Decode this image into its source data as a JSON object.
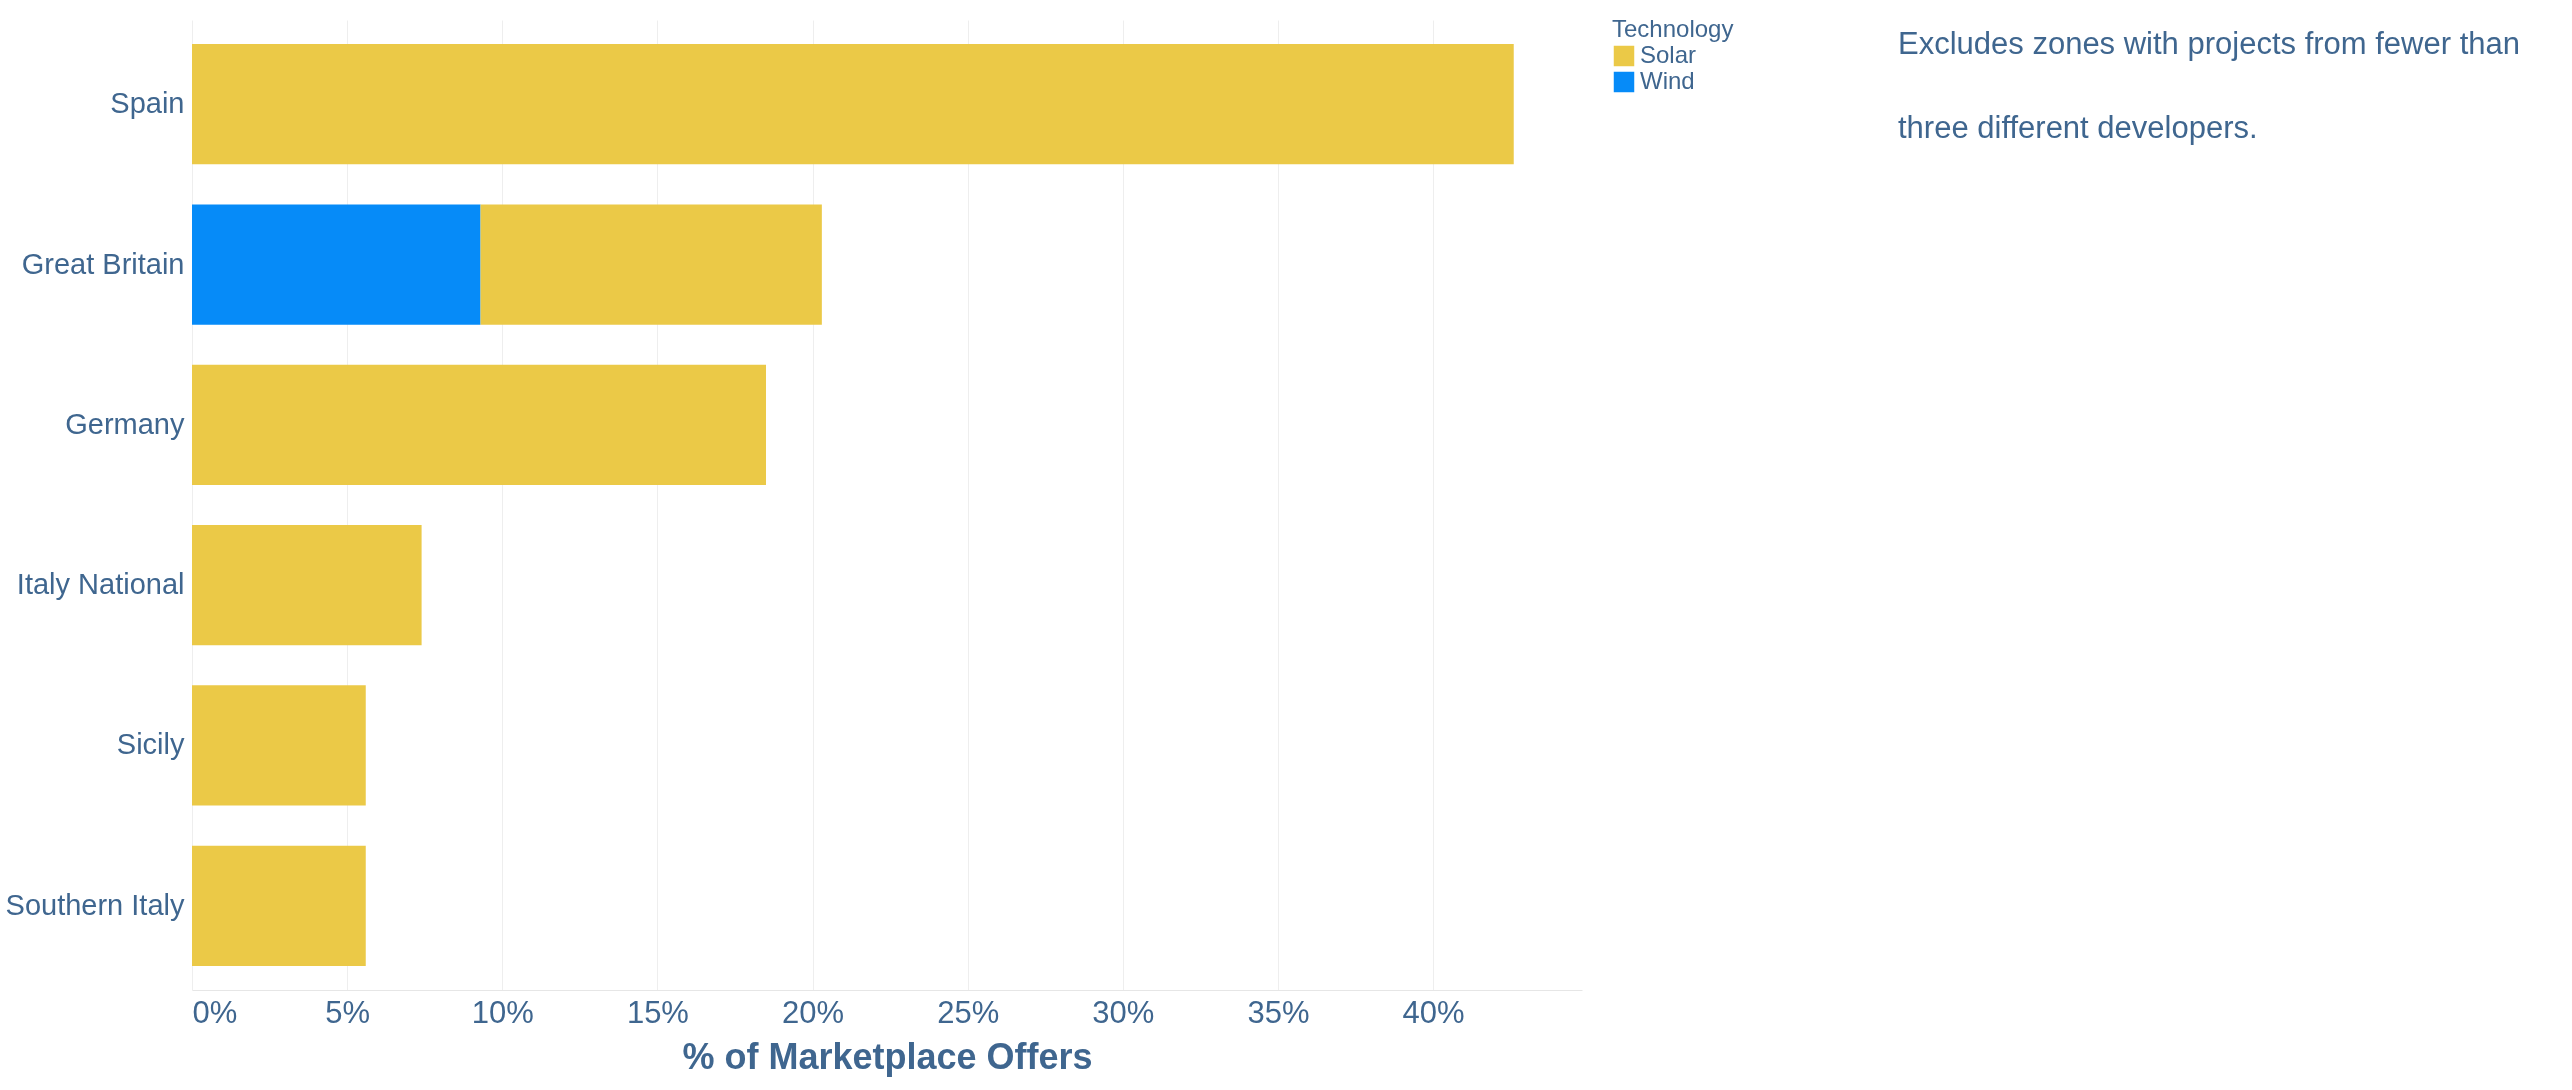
{
  "chart_data": {
    "type": "bar",
    "orientation": "horizontal",
    "stacked": true,
    "categories": [
      "Spain",
      "Great Britain",
      "Germany",
      "Italy National",
      "Sicily",
      "Southern Italy"
    ],
    "series": [
      {
        "name": "Wind",
        "color": "#068bf8",
        "values": [
          null,
          9.3,
          null,
          null,
          null,
          null
        ]
      },
      {
        "name": "Solar",
        "color": "#ebc947",
        "values": [
          42.6,
          11.0,
          18.5,
          7.4,
          5.6,
          5.6
        ]
      }
    ],
    "xlim": [
      0,
      44.8
    ],
    "xticks": [
      {
        "value": 0,
        "label": "0%"
      },
      {
        "value": 5,
        "label": "5%"
      },
      {
        "value": 10,
        "label": "10%"
      },
      {
        "value": 15,
        "label": "15%"
      },
      {
        "value": 20,
        "label": "20%"
      },
      {
        "value": 25,
        "label": "25%"
      },
      {
        "value": 30,
        "label": "30%"
      },
      {
        "value": 35,
        "label": "35%"
      },
      {
        "value": 40,
        "label": "40%"
      }
    ],
    "xlabel": "% of Marketplace Offers",
    "legend_title": "Technology",
    "legend": "top right",
    "grid": "x",
    "annotations": [
      "Excludes zones with projects from fewer than three different developers."
    ]
  }
}
